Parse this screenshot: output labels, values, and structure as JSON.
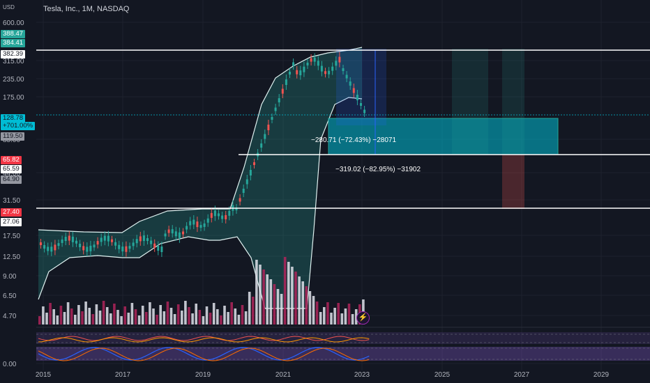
{
  "header": {
    "currency": "USD",
    "title": "Tesla, Inc., 1M, NASDAQ"
  },
  "price_axis": {
    "ticks": [
      "600.00",
      "315.00",
      "235.00",
      "175.00",
      "85.00",
      "44.00",
      "31.50",
      "17.50",
      "12.50",
      "9.00",
      "6.50",
      "4.70",
      "0.00"
    ]
  },
  "price_tags": [
    {
      "text": "388.47",
      "bg": "#26a69a",
      "fg": "#ffffff"
    },
    {
      "text": "384.41",
      "bg": "#26a69a",
      "fg": "#ffffff"
    },
    {
      "text": "382.39",
      "bg": "#ffffff",
      "fg": "#131722"
    },
    {
      "text": "128.78",
      "bg": "#00bcd4",
      "fg": "#131722"
    },
    {
      "text": "+701.00%",
      "bg": "#00bcd4",
      "fg": "#131722"
    },
    {
      "text": "119.50",
      "bg": "#9598a1",
      "fg": "#131722"
    },
    {
      "text": "65.82",
      "bg": "#f23645",
      "fg": "#ffffff"
    },
    {
      "text": "65.59",
      "bg": "#ffffff",
      "fg": "#131722"
    },
    {
      "text": "64.90",
      "bg": "#9598a1",
      "fg": "#131722"
    },
    {
      "text": "27.40",
      "bg": "#f23645",
      "fg": "#ffffff"
    },
    {
      "text": "27.06",
      "bg": "#ffffff",
      "fg": "#131722"
    }
  ],
  "time_axis": {
    "labels": [
      "2015",
      "2017",
      "2019",
      "2021",
      "2023",
      "2025",
      "2027",
      "2029"
    ]
  },
  "measurements": [
    {
      "text": "−280.71 (−72.43%) −28071",
      "bg": "#2962ff"
    },
    {
      "text": "−319.02 (−82.95%) −31902",
      "bg": "#2962ff"
    }
  ],
  "colors": {
    "background": "#131722",
    "up": "#26a69a",
    "down": "#ef5350",
    "bollinger": "#e0f2f1",
    "projection_box": "#00bcd4",
    "volume_up": "#e0e3eb",
    "volume_down": "#b0245a"
  },
  "icons": {
    "alert": "lightning-icon"
  }
}
